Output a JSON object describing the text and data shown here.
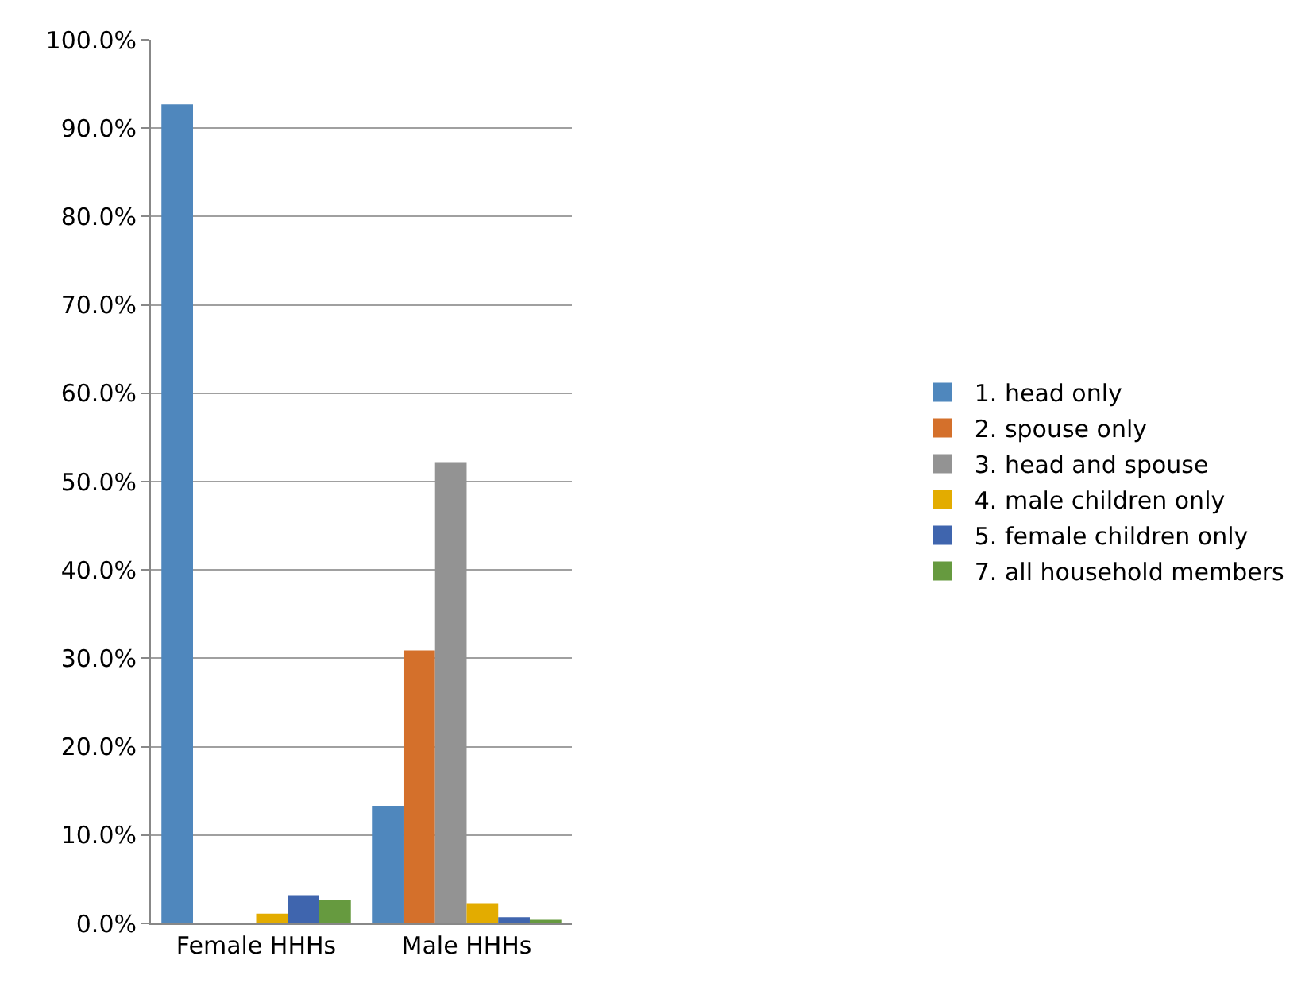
{
  "chart_data": {
    "type": "bar",
    "categories": [
      "Female HHHs",
      "Male HHHs"
    ],
    "series": [
      {
        "name": "1. head only",
        "color": "#4f87bd",
        "values": [
          92.7,
          13.3
        ]
      },
      {
        "name": "2. spouse only",
        "color": "#d4702b",
        "values": [
          0,
          30.9
        ]
      },
      {
        "name": "3. head and spouse",
        "color": "#939393",
        "values": [
          0,
          52.2
        ]
      },
      {
        "name": "4. male children only",
        "color": "#e3ac00",
        "values": [
          1.1,
          2.3
        ]
      },
      {
        "name": "5. female children only",
        "color": "#3f65ae",
        "values": [
          3.2,
          0.7
        ]
      },
      {
        "name": "7. all household members",
        "color": "#669a3f",
        "values": [
          2.7,
          0.4
        ]
      }
    ],
    "ylim": [
      0,
      100
    ],
    "yticks": [
      {
        "value": 0,
        "label": "0.0%"
      },
      {
        "value": 10,
        "label": "10.0%"
      },
      {
        "value": 20,
        "label": "20.0%"
      },
      {
        "value": 30,
        "label": "30.0%"
      },
      {
        "value": 40,
        "label": "40.0%"
      },
      {
        "value": 50,
        "label": "50.0%"
      },
      {
        "value": 60,
        "label": "60.0%"
      },
      {
        "value": 70,
        "label": "70.0%"
      },
      {
        "value": 80,
        "label": "80.0%"
      },
      {
        "value": 90,
        "label": "90.0%"
      },
      {
        "value": 100,
        "label": "100.0%"
      }
    ],
    "grid": "y",
    "legend": "right"
  }
}
